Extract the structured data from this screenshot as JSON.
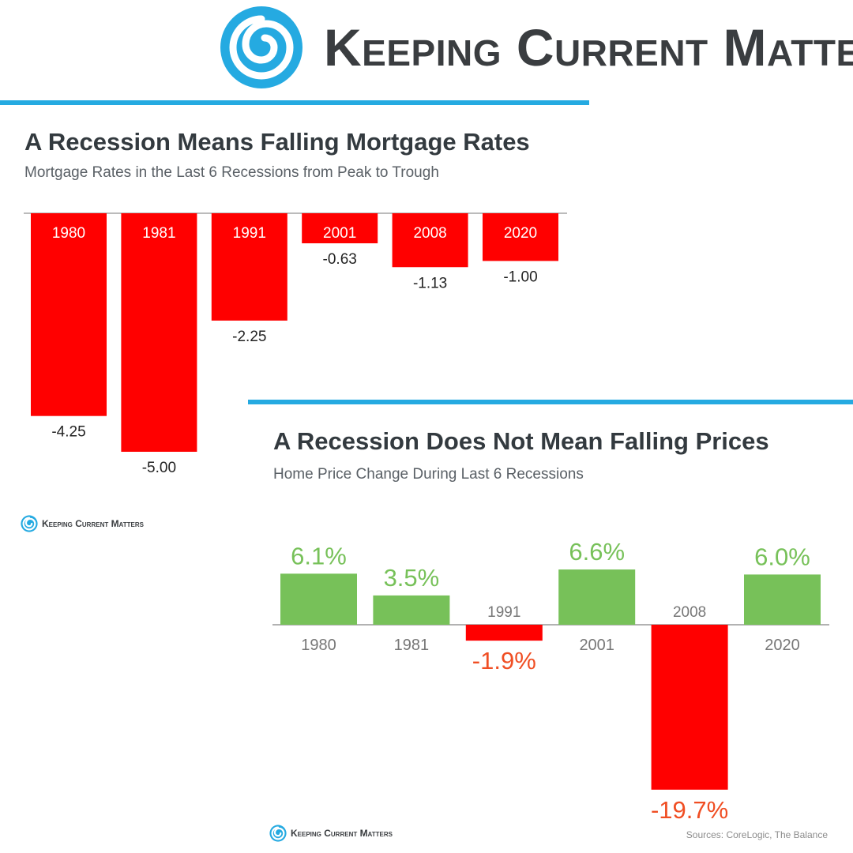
{
  "brand": {
    "name": "Keeping Current Matters",
    "logo_icon": "swirl-logo-icon",
    "accent_color": "#25aae1"
  },
  "chart_data": [
    {
      "type": "bar",
      "title": "A Recession Means Falling Mortgage Rates",
      "subtitle": "Mortgage Rates in the Last 6 Recessions from Peak to Trough",
      "categories": [
        "1980",
        "1981",
        "1991",
        "2001",
        "2008",
        "2020"
      ],
      "values": [
        -4.25,
        -5.0,
        -2.25,
        -0.63,
        -1.13,
        -1.0
      ],
      "value_labels": [
        "-4.25",
        "-5.00",
        "-2.25",
        "-0.63",
        "-1.13",
        "-1.00"
      ],
      "bar_color": "#ff0000",
      "ylim": [
        -5,
        0
      ],
      "xlabel": "",
      "ylabel": "",
      "grid": false
    },
    {
      "type": "bar",
      "title": "A Recession Does Not Mean Falling Prices",
      "subtitle": "Home Price Change During Last 6 Recessions",
      "categories": [
        "1980",
        "1981",
        "1991",
        "2001",
        "2008",
        "2020"
      ],
      "values": [
        6.1,
        3.5,
        -1.9,
        6.6,
        -19.7,
        6.0
      ],
      "value_labels": [
        "6.1%",
        "3.5%",
        "-1.9%",
        "6.6%",
        "-19.7%",
        "6.0%"
      ],
      "positive_color": "#77c159",
      "negative_color": "#ff0000",
      "negative_label_color": "#f04e23",
      "ylim": [
        -19.7,
        6.6
      ],
      "xlabel": "",
      "ylabel": "",
      "grid": false
    }
  ],
  "footer": {
    "sources": "Sources: CoreLogic, The Balance"
  }
}
